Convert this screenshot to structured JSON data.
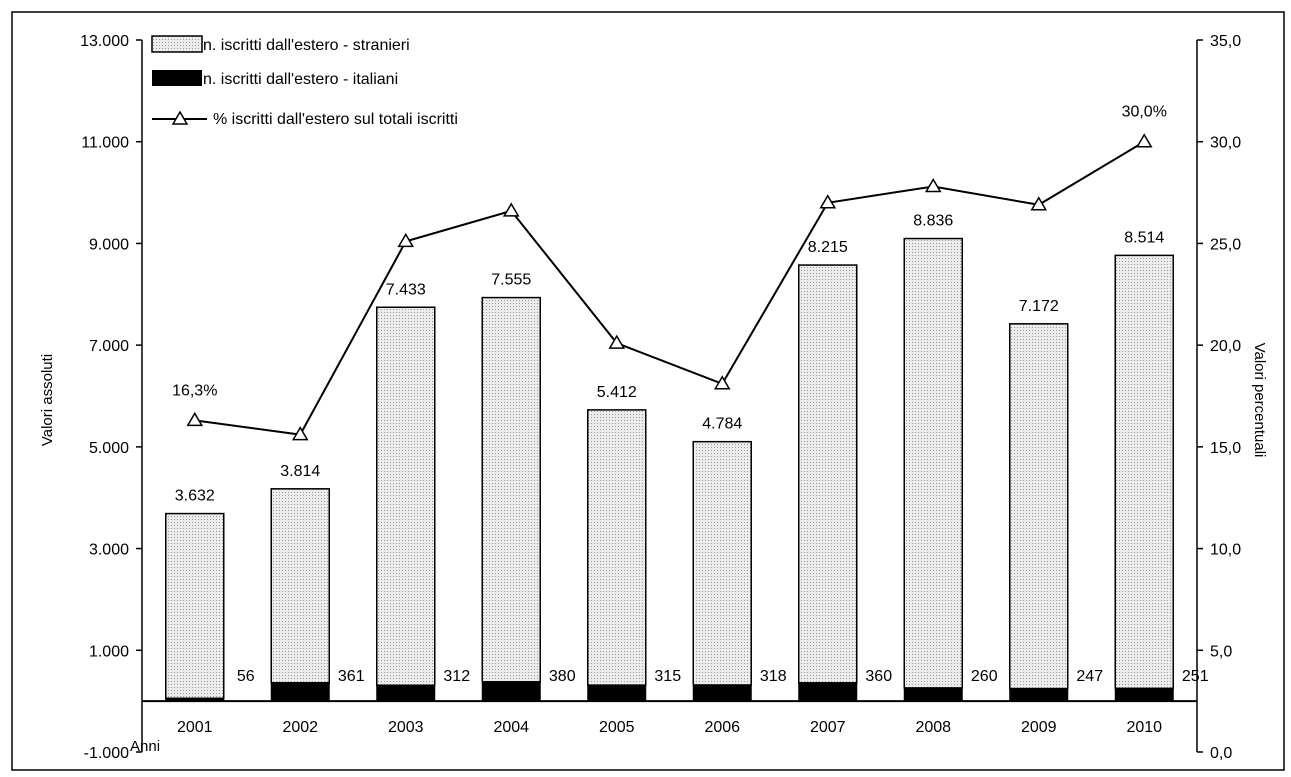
{
  "chart_data": {
    "type": "bar",
    "categories": [
      "2001",
      "2002",
      "2003",
      "2004",
      "2005",
      "2006",
      "2007",
      "2008",
      "2009",
      "2010"
    ],
    "series": [
      {
        "name": "n. iscritti dall'estero - stranieri",
        "kind": "stacked-bar",
        "values": [
          3632,
          3814,
          7433,
          7555,
          5412,
          4784,
          8215,
          8836,
          7172,
          8514
        ],
        "labels": [
          "3.632",
          "3.814",
          "7.433",
          "7.555",
          "5.412",
          "4.784",
          "8.215",
          "8.836",
          "7.172",
          "8.514"
        ]
      },
      {
        "name": "n. iscritti dall'estero - italiani",
        "kind": "stacked-bar",
        "values": [
          56,
          361,
          312,
          380,
          315,
          318,
          360,
          260,
          247,
          251
        ],
        "labels": [
          "56",
          "361",
          "312",
          "380",
          "315",
          "318",
          "360",
          "260",
          "247",
          "251"
        ]
      },
      {
        "name": "% iscritti dall'estero sul  totali iscritti",
        "kind": "line",
        "axis": "right",
        "values": [
          16.3,
          15.6,
          25.1,
          26.6,
          20.1,
          18.1,
          27.0,
          27.8,
          26.9,
          30.0
        ],
        "labels": [
          "16,3%",
          "",
          "",
          "",
          "",
          "",
          "",
          "",
          "",
          "30,0%"
        ]
      }
    ],
    "xlabel": "Anni",
    "ylabel": "Valori assoluti",
    "y2label": "Valori percentuali",
    "ylim": [
      -1000,
      13000
    ],
    "y2lim": [
      0,
      35
    ],
    "yticks": [
      -1000,
      1000,
      3000,
      5000,
      7000,
      9000,
      11000,
      13000
    ],
    "ytick_labels": [
      "-1.000",
      "1.000",
      "3.000",
      "5.000",
      "7.000",
      "9.000",
      "11.000",
      "13.000"
    ],
    "y2ticks": [
      0,
      5,
      10,
      15,
      20,
      25,
      30,
      35
    ],
    "y2tick_labels": [
      "0,0",
      "5,0",
      "10,0",
      "15,0",
      "20,0",
      "25,0",
      "30,0",
      "35,0"
    ],
    "grid": false,
    "legend": "top-left"
  }
}
